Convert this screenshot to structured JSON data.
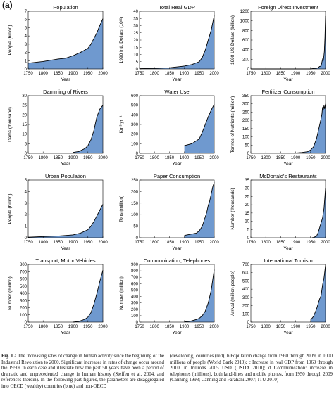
{
  "panel_letter": "(a)",
  "chart_data": [
    {
      "type": "area",
      "title": "Population",
      "ylabel": "People (billion)",
      "xlabel": "Year",
      "xlim": [
        1750,
        2000
      ],
      "ylim": [
        0,
        7
      ],
      "xticks": [
        1750,
        1800,
        1850,
        1900,
        1950,
        2000
      ],
      "yticks": [
        0,
        1,
        2,
        3,
        4,
        5,
        6,
        7
      ],
      "x": [
        1750,
        1800,
        1850,
        1875,
        1900,
        1925,
        1950,
        1960,
        1970,
        1980,
        1990,
        2000
      ],
      "values": [
        0.7,
        0.9,
        1.2,
        1.3,
        1.6,
        2.0,
        2.5,
        3.0,
        3.7,
        4.4,
        5.3,
        6.1
      ]
    },
    {
      "type": "area",
      "title": "Total Real GDP",
      "ylabel": "1990 Intl. Dollars (10¹²)",
      "xlabel": "Year",
      "xlim": [
        1750,
        2000
      ],
      "ylim": [
        0,
        40
      ],
      "xticks": [
        1750,
        1800,
        1850,
        1900,
        1950,
        2000
      ],
      "yticks": [
        0,
        5,
        10,
        15,
        20,
        25,
        30,
        35,
        40
      ],
      "x": [
        1750,
        1800,
        1850,
        1900,
        1925,
        1950,
        1960,
        1970,
        1980,
        1990,
        2000
      ],
      "values": [
        0.2,
        0.4,
        0.8,
        2,
        3,
        5,
        8,
        13,
        20,
        27,
        37
      ]
    },
    {
      "type": "area",
      "title": "Foreign Direct Investment",
      "ylabel": "1998 US Dollars (billion)",
      "xlabel": "Year",
      "xlim": [
        1750,
        2000
      ],
      "ylim": [
        0,
        1200
      ],
      "xticks": [
        1750,
        1800,
        1850,
        1900,
        1950,
        2000
      ],
      "yticks": [
        0,
        200,
        400,
        600,
        800,
        1000,
        1200
      ],
      "x": [
        1750,
        1950,
        1960,
        1970,
        1975,
        1980,
        1985,
        1990,
        1992,
        1994,
        1996,
        1998,
        2000
      ],
      "values": [
        0,
        0,
        10,
        15,
        25,
        50,
        60,
        200,
        160,
        240,
        360,
        650,
        1100
      ]
    },
    {
      "type": "area",
      "title": "Damming of Rivers",
      "ylabel": "Dams (thousand)",
      "xlabel": "Year",
      "xlim": [
        1750,
        2000
      ],
      "ylim": [
        0,
        30
      ],
      "xticks": [
        1750,
        1800,
        1850,
        1900,
        1950,
        2000
      ],
      "yticks": [
        0,
        5,
        10,
        15,
        20,
        25,
        30
      ],
      "x": [
        1900,
        1920,
        1940,
        1950,
        1960,
        1970,
        1980,
        1990,
        2000
      ],
      "values": [
        0.5,
        1,
        2.5,
        4,
        7,
        12,
        19,
        23,
        25
      ]
    },
    {
      "type": "area",
      "title": "Water Use",
      "ylabel": "Km³ yr⁻¹",
      "xlabel": "Year",
      "xlim": [
        1750,
        2000
      ],
      "ylim": [
        0,
        600
      ],
      "xticks": [
        1750,
        1800,
        1850,
        1900,
        1950,
        2000
      ],
      "yticks": [
        0,
        100,
        200,
        300,
        400,
        500,
        600
      ],
      "x": [
        1900,
        1925,
        1950,
        1960,
        1970,
        1980,
        1990,
        2000
      ],
      "values": [
        80,
        100,
        150,
        220,
        300,
        380,
        450,
        510
      ]
    },
    {
      "type": "area",
      "title": "Fertilizer Consumption",
      "ylabel": "Tonnes of Nutrients (million)",
      "xlabel": "Year",
      "xlim": [
        1750,
        2000
      ],
      "ylim": [
        0,
        350
      ],
      "xticks": [
        1750,
        1800,
        1850,
        1900,
        1950,
        2000
      ],
      "yticks": [
        0,
        50,
        100,
        150,
        200,
        250,
        300,
        350
      ],
      "x": [
        1900,
        1920,
        1940,
        1950,
        1960,
        1970,
        1975,
        1980,
        1985,
        1988,
        1990,
        1992,
        1995,
        1997,
        2000
      ],
      "values": [
        2,
        5,
        10,
        20,
        40,
        90,
        130,
        170,
        210,
        240,
        280,
        260,
        290,
        270,
        300
      ]
    },
    {
      "type": "area",
      "title": "Urban Population",
      "ylabel": "People (billion)",
      "xlabel": "Year",
      "xlim": [
        1750,
        2000
      ],
      "ylim": [
        0,
        5
      ],
      "xticks": [
        1750,
        1800,
        1850,
        1900,
        1950,
        2000
      ],
      "yticks": [
        0,
        1,
        2,
        3,
        4,
        5
      ],
      "x": [
        1750,
        1800,
        1850,
        1900,
        1925,
        1950,
        1960,
        1970,
        1980,
        1990,
        2000
      ],
      "values": [
        0.05,
        0.1,
        0.15,
        0.25,
        0.4,
        0.7,
        1.0,
        1.4,
        1.9,
        2.4,
        2.9
      ]
    },
    {
      "type": "area",
      "title": "Paper Consumption",
      "ylabel": "Tons (million)",
      "xlabel": "Year",
      "xlim": [
        1750,
        2000
      ],
      "ylim": [
        0,
        250
      ],
      "xticks": [
        1750,
        1800,
        1850,
        1900,
        1950,
        2000
      ],
      "yticks": [
        0,
        50,
        100,
        150,
        200,
        250
      ],
      "x": [
        1900,
        1920,
        1940,
        1950,
        1960,
        1970,
        1975,
        1980,
        1985,
        1990,
        1995,
        2000
      ],
      "values": [
        10,
        15,
        20,
        30,
        50,
        90,
        110,
        140,
        160,
        190,
        220,
        240
      ]
    },
    {
      "type": "area",
      "title": "McDonald's Restaurants",
      "ylabel": "Number (thousands)",
      "xlabel": "Year",
      "xlim": [
        1750,
        2000
      ],
      "ylim": [
        0,
        35
      ],
      "xticks": [
        1750,
        1800,
        1850,
        1900,
        1950,
        2000
      ],
      "yticks": [
        0,
        5,
        10,
        15,
        20,
        25,
        30,
        35
      ],
      "x": [
        1955,
        1960,
        1970,
        1975,
        1980,
        1985,
        1990,
        1995,
        2000
      ],
      "values": [
        0,
        0.2,
        1,
        3,
        6,
        9,
        12,
        18,
        30
      ]
    },
    {
      "type": "area",
      "title": "Transport, Motor Vehicles",
      "ylabel": "Number (million)",
      "xlabel": "Year",
      "xlim": [
        1750,
        2000
      ],
      "ylim": [
        0,
        800
      ],
      "xticks": [
        1750,
        1800,
        1850,
        1900,
        1950,
        2000
      ],
      "yticks": [
        0,
        100,
        200,
        300,
        400,
        500,
        600,
        700,
        800
      ],
      "x": [
        1900,
        1920,
        1940,
        1950,
        1960,
        1970,
        1980,
        1990,
        2000
      ],
      "values": [
        0,
        10,
        40,
        70,
        130,
        250,
        400,
        570,
        720
      ]
    },
    {
      "type": "area",
      "title": "Communication, Telephones",
      "ylabel": "Number (million)",
      "xlabel": "Year",
      "xlim": [
        1750,
        2000
      ],
      "ylim": [
        0,
        900
      ],
      "xticks": [
        1750,
        1800,
        1850,
        1900,
        1950,
        2000
      ],
      "yticks": [
        0,
        100,
        200,
        300,
        400,
        500,
        600,
        700,
        800,
        900
      ],
      "x": [
        1900,
        1920,
        1940,
        1950,
        1960,
        1970,
        1980,
        1990,
        2000
      ],
      "values": [
        3,
        15,
        40,
        60,
        100,
        170,
        300,
        500,
        820
      ]
    },
    {
      "type": "area",
      "title": "International Tourism",
      "ylabel": "Arrival (million people)",
      "xlabel": "Year",
      "xlim": [
        1750,
        2000
      ],
      "ylim": [
        0,
        700
      ],
      "xticks": [
        1750,
        1800,
        1850,
        1900,
        1950,
        2000
      ],
      "yticks": [
        0,
        100,
        200,
        300,
        400,
        500,
        600,
        700
      ],
      "x": [
        1950,
        1960,
        1970,
        1980,
        1985,
        1990,
        1995,
        2000
      ],
      "values": [
        25,
        70,
        160,
        280,
        320,
        450,
        540,
        690
      ]
    }
  ],
  "caption": {
    "fig_label": "Fig. 1",
    "left": "a The increasing rates of change in human activity since the beginning of the Industrial Revolution to 2000. Significant increases in rates of change occur around the 1950s in each case and illustrate how the past 50 years have been a period of dramatic and unprecedented change in human history (Steffen et al. 2004, and references therein). In the following part figures, the parameters are disaggregated into OECD (wealthy) countries (blue) and non-OECD",
    "right": "(developing) countries (red); b Population change from 1960 through 2009, in 1000 millions of people (World Bank 2010); c Increase in real GDP from 1969 through 2010, in trillions 2005 USD (USDA 2010); d Communication: increase in telephones (millions), both land-lines and mobile phones, from 1950 through 2009 (Canning 1998; Canning and Farahani 2007; ITU 2010)"
  },
  "colors": {
    "fill": "#6f99cf",
    "line": "#000000"
  }
}
